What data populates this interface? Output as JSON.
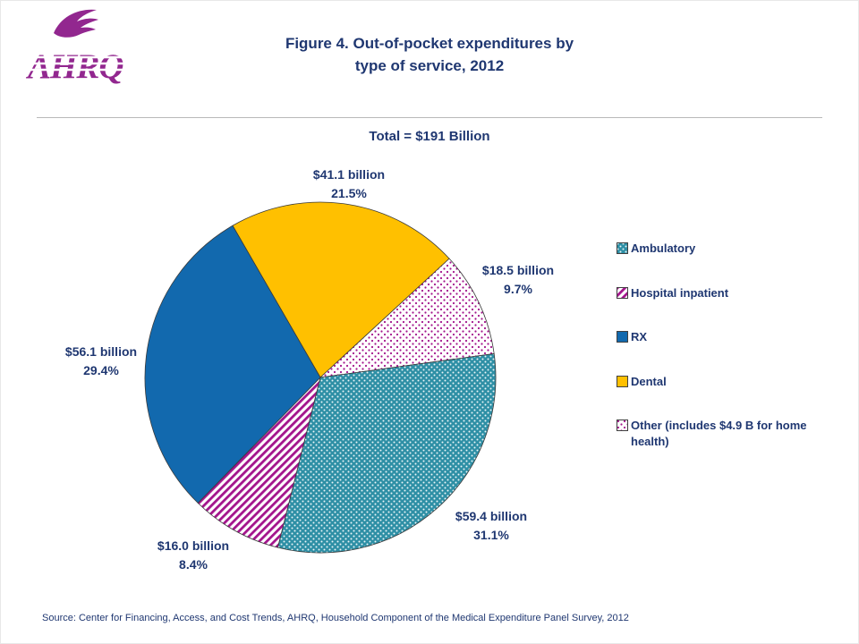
{
  "logo": {
    "wordmark": "AHRQ"
  },
  "header": {
    "title_lines": [
      "Figure 4. Out-of-pocket expenditures by",
      "type of service, 2012"
    ]
  },
  "chart_data": {
    "type": "pie",
    "title": "Figure 4. Out-of-pocket expenditures by type of service, 2012",
    "total_label": "Total = $191 Billion",
    "total_billions": 191,
    "units": "USD billions",
    "slices": [
      {
        "label": "Ambulatory",
        "value_billions": 59.4,
        "pct": 31.1,
        "value_label": "$59.4 billion",
        "pct_label": "31.1%",
        "pattern": "teal-dots",
        "color": "#2E8FA5"
      },
      {
        "label": "Hospital inpatient",
        "value_billions": 16.0,
        "pct": 8.4,
        "value_label": "$16.0 billion",
        "pct_label": "8.4%",
        "pattern": "magenta-stripes",
        "color": "#A3148C"
      },
      {
        "label": "RX",
        "value_billions": 56.1,
        "pct": 29.4,
        "value_label": "$56.1 billion",
        "pct_label": "29.4%",
        "pattern": null,
        "color": "#1269AE"
      },
      {
        "label": "Dental",
        "value_billions": 41.1,
        "pct": 21.5,
        "value_label": "$41.1 billion",
        "pct_label": "21.5%",
        "pattern": null,
        "color": "#FFC000"
      },
      {
        "label": "Other (includes $4.9 B for home health)",
        "value_billions": 18.5,
        "pct": 9.7,
        "value_label": "$18.5 billion",
        "pct_label": "9.7%",
        "pattern": "purple-dots",
        "color": "#A3148C"
      }
    ],
    "layout": {
      "start_angle_deg": -30,
      "draw_order": [
        3,
        4,
        0,
        1,
        2
      ],
      "legend_position": "right",
      "labels_outside": true
    }
  },
  "footer": {
    "source": "Source: Center for Financing, Access, and Cost Trends, AHRQ, Household Component of the Medical Expenditure Panel Survey, 2012"
  },
  "colors": {
    "title_navy": "#1F3771",
    "brand_purple": "#92278F",
    "rx_blue": "#1269AE",
    "dental_gold": "#FFC000",
    "teal": "#2E8FA5",
    "magenta": "#A3148C"
  }
}
